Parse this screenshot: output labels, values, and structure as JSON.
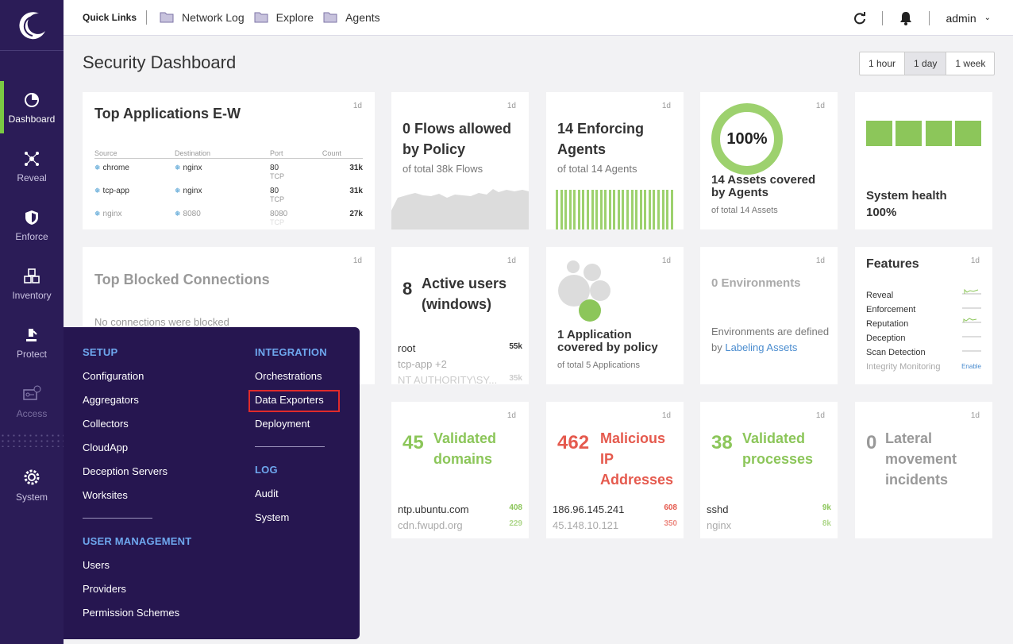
{
  "nav": {
    "items": [
      {
        "label": "Dashboard",
        "icon": "pie-chart-icon"
      },
      {
        "label": "Reveal",
        "icon": "network-icon"
      },
      {
        "label": "Enforce",
        "icon": "shield-icon"
      },
      {
        "label": "Inventory",
        "icon": "cubes-icon"
      },
      {
        "label": "Protect",
        "icon": "protect-icon"
      },
      {
        "label": "Access",
        "icon": "access-key-icon"
      },
      {
        "label": "System",
        "icon": "gear-icon"
      }
    ]
  },
  "topbar": {
    "quick_links_label": "Quick Links",
    "links": [
      "Network Log",
      "Explore",
      "Agents"
    ],
    "user": "admin"
  },
  "page": {
    "title": "Security Dashboard",
    "time_ranges": [
      "1 hour",
      "1 day",
      "1 week"
    ],
    "selected_range": "1 day"
  },
  "cards": {
    "period": "1d",
    "top_apps": {
      "title": "Top Applications E-W",
      "headers": [
        "Source",
        "Destination",
        "Port",
        "Count"
      ],
      "rows": [
        {
          "source": "chrome",
          "dest": "nginx",
          "port": "80",
          "proto": "TCP",
          "count": "31k"
        },
        {
          "source": "tcp-app",
          "dest": "nginx",
          "port": "80",
          "proto": "TCP",
          "count": "31k"
        },
        {
          "source": "nginx",
          "dest": "8080",
          "port": "8080",
          "proto": "TCP",
          "count": "27k"
        }
      ]
    },
    "flows": {
      "title": "0 Flows allowed by Policy",
      "sub": "of total 38k Flows"
    },
    "agents": {
      "title": "14 Enforcing Agents",
      "sub": "of total 14 Agents"
    },
    "assets": {
      "pct": "100%",
      "title": "14 Assets covered by Agents",
      "sub": "of total 14 Assets"
    },
    "health": {
      "title": "System health 100%"
    },
    "blocked": {
      "title": "Top Blocked Connections",
      "empty": "No connections were blocked"
    },
    "users": {
      "num": "8",
      "title": "Active users (windows)",
      "rows": [
        {
          "name": "root",
          "val": "55k"
        },
        {
          "name": "tcp-app +2",
          "val": ""
        },
        {
          "name": "NT AUTHORITY\\SY...",
          "val": "35k"
        }
      ]
    },
    "apps_policy": {
      "title": "1 Application covered by policy",
      "sub": "of total 5 Applications"
    },
    "envs": {
      "title": "0 Environments",
      "text1": "Environments are defined by ",
      "link": "Labeling Assets"
    },
    "features": {
      "title": "Features",
      "items": [
        "Reveal",
        "Enforcement",
        "Reputation",
        "Deception",
        "Scan Detection",
        "Integrity Monitoring"
      ],
      "enable": "Enable"
    },
    "domains": {
      "num": "45",
      "title": "Validated domains",
      "rows": [
        {
          "name": "ntp.ubuntu.com",
          "val": "408"
        },
        {
          "name": "cdn.fwupd.org",
          "val": "229"
        }
      ]
    },
    "malicious": {
      "num": "462",
      "title": "Malicious IP Addresses",
      "rows": [
        {
          "name": "186.96.145.241",
          "val": "608"
        },
        {
          "name": "45.148.10.121",
          "val": "350"
        }
      ]
    },
    "processes": {
      "num": "38",
      "title": "Validated processes",
      "rows": [
        {
          "name": "sshd",
          "val": "9k"
        },
        {
          "name": "nginx",
          "val": "8k"
        }
      ]
    },
    "lateral": {
      "num": "0",
      "title": "Lateral movement incidents"
    }
  },
  "settings_menu": {
    "setup": {
      "heading": "SETUP",
      "items": [
        "Configuration",
        "Aggregators",
        "Collectors",
        "CloudApp",
        "Deception Servers",
        "Worksites"
      ]
    },
    "user_mgmt": {
      "heading": "USER MANAGEMENT",
      "items": [
        "Users",
        "Providers",
        "Permission Schemes"
      ]
    },
    "integration": {
      "heading": "INTEGRATION",
      "items": [
        "Orchestrations",
        "Data Exporters",
        "Deployment"
      ]
    },
    "log": {
      "heading": "LOG",
      "items": [
        "Audit",
        "System"
      ]
    }
  },
  "colors": {
    "sidebar": "#2b1c57",
    "popover": "#261650",
    "accent_green": "#8cc65a",
    "accent_red": "#e55a4e",
    "heading_blue": "#6ea7ee"
  }
}
